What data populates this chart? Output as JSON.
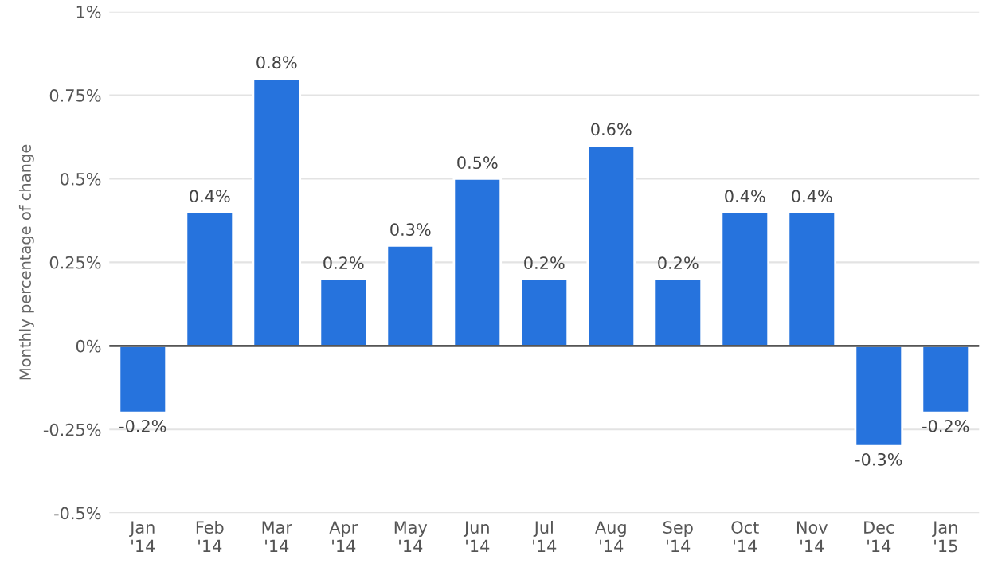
{
  "chart_data": {
    "type": "bar",
    "ylabel": "Monthly percentage of change",
    "categories": [
      "Jan\n'14",
      "Feb\n'14",
      "Mar\n'14",
      "Apr\n'14",
      "May\n'14",
      "Jun\n'14",
      "Jul\n'14",
      "Aug\n'14",
      "Sep\n'14",
      "Oct\n'14",
      "Nov\n'14",
      "Dec\n'14",
      "Jan\n'15"
    ],
    "values": [
      -0.2,
      0.4,
      0.8,
      0.2,
      0.3,
      0.5,
      0.2,
      0.6,
      0.2,
      0.4,
      0.4,
      -0.3,
      -0.2
    ],
    "value_labels": [
      "-0.2%",
      "0.4%",
      "0.8%",
      "0.2%",
      "0.3%",
      "0.5%",
      "0.2%",
      "0.6%",
      "0.2%",
      "0.4%",
      "0.4%",
      "-0.3%",
      "-0.2%"
    ],
    "color": "#2673dd",
    "ylim": [
      -0.5,
      1
    ],
    "yticks": [
      {
        "value": -0.5,
        "label": "-0.5%"
      },
      {
        "value": -0.25,
        "label": "-0.25%"
      },
      {
        "value": 0,
        "label": "0%"
      },
      {
        "value": 0.25,
        "label": "0.25%"
      },
      {
        "value": 0.5,
        "label": "0.5%"
      },
      {
        "value": 0.75,
        "label": "0.75%"
      },
      {
        "value": 1,
        "label": "1%"
      }
    ],
    "grid": "y"
  }
}
